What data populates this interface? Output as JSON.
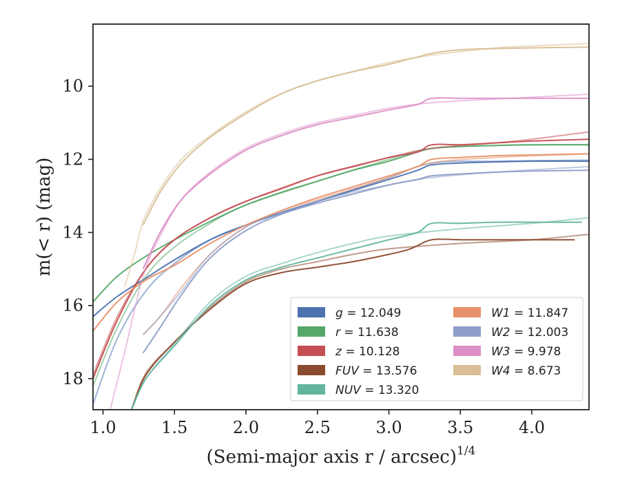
{
  "chart_data": {
    "type": "line",
    "title": "",
    "xlabel": "(Semi-major axis r / arcsec)",
    "xlabel_var": "r",
    "xlabel_exp": "1/4",
    "ylabel": "m(< r) (mag)",
    "xlim": [
      0.93,
      4.4
    ],
    "ylim": [
      18.85,
      8.3
    ],
    "y_inverted": true,
    "xticks": [
      "1.0",
      "1.5",
      "2.0",
      "2.5",
      "3.0",
      "3.5",
      "4.0"
    ],
    "xtick_values": [
      1.0,
      1.5,
      2.0,
      2.5,
      3.0,
      3.5,
      4.0
    ],
    "yticks": [
      "10",
      "12",
      "14",
      "16",
      "18"
    ],
    "ytick_values": [
      10,
      12,
      14,
      16,
      18
    ],
    "grid": false,
    "legend_position": "lower-right",
    "legend_columns": 2,
    "series": [
      {
        "name": "g",
        "legend_value": "= 12.049",
        "color": "#4c72b0",
        "x": [
          0.93,
          1.1,
          1.3,
          1.5,
          1.75,
          2.0,
          2.25,
          2.5,
          2.75,
          3.0,
          3.2,
          3.3,
          3.5,
          3.75,
          4.0,
          4.25,
          4.4
        ],
        "y": [
          16.3,
          15.75,
          15.25,
          14.75,
          14.2,
          13.8,
          13.45,
          13.15,
          12.85,
          12.55,
          12.3,
          12.15,
          12.1,
          12.07,
          12.05,
          12.05,
          12.05
        ],
        "x2": [
          0.93,
          1.1,
          1.3,
          1.5,
          1.75,
          2.0,
          2.5,
          3.0,
          3.3,
          3.75,
          4.4
        ],
        "y2": [
          18.7,
          16.9,
          15.6,
          14.85,
          14.2,
          13.8,
          13.15,
          12.5,
          12.1,
          12.05,
          12.02
        ]
      },
      {
        "name": "r",
        "legend_value": "= 11.638",
        "color": "#55a868",
        "x": [
          0.93,
          1.1,
          1.3,
          1.5,
          1.75,
          2.0,
          2.25,
          2.5,
          2.75,
          3.0,
          3.2,
          3.3,
          3.5,
          3.75,
          4.0,
          4.4
        ],
        "y": [
          15.9,
          15.2,
          14.65,
          14.2,
          13.7,
          13.25,
          12.9,
          12.6,
          12.3,
          12.05,
          11.8,
          11.7,
          11.65,
          11.62,
          11.6,
          11.6
        ],
        "x2": [
          0.93,
          1.1,
          1.3,
          1.5,
          1.75,
          2.0,
          2.5,
          3.0,
          3.3,
          3.75,
          4.4
        ],
        "y2": [
          18.2,
          16.6,
          15.2,
          14.4,
          13.75,
          13.25,
          12.6,
          12.0,
          11.7,
          11.62,
          11.6
        ]
      },
      {
        "name": "z",
        "legend_value": "= 10.128",
        "color": "#c44e52",
        "x": [
          0.93,
          1.1,
          1.3,
          1.5,
          1.75,
          2.0,
          2.25,
          2.5,
          2.75,
          3.0,
          3.2,
          3.3,
          3.5,
          3.75,
          4.0,
          4.4
        ],
        "y": [
          18.0,
          16.4,
          15.0,
          14.2,
          13.6,
          13.15,
          12.8,
          12.45,
          12.2,
          11.95,
          11.8,
          11.6,
          11.6,
          11.55,
          11.5,
          11.45
        ],
        "x2": [
          0.93,
          1.1,
          1.3,
          1.5,
          1.75,
          2.0,
          2.5,
          3.0,
          3.3,
          3.75,
          4.0,
          4.4
        ],
        "y2": [
          17.9,
          16.3,
          15.0,
          14.2,
          13.6,
          13.15,
          12.45,
          11.95,
          11.7,
          11.55,
          11.45,
          11.25
        ]
      },
      {
        "name": "FUV",
        "legend_value": "= 13.576",
        "color": "#8c4a2f",
        "x": [
          1.2,
          1.3,
          1.5,
          1.75,
          2.0,
          2.25,
          2.5,
          2.75,
          3.0,
          3.15,
          3.3,
          3.5,
          3.75,
          4.0,
          4.3
        ],
        "y": [
          18.85,
          17.9,
          17.0,
          16.1,
          15.4,
          15.1,
          14.95,
          14.8,
          14.6,
          14.45,
          14.2,
          14.2,
          14.2,
          14.2,
          14.2
        ],
        "x2": [
          1.2,
          1.3,
          1.5,
          1.75,
          2.0,
          2.25,
          2.5,
          2.75,
          3.0,
          3.5,
          4.0,
          4.4
        ],
        "y2": [
          18.85,
          17.85,
          17.0,
          16.05,
          15.35,
          15.0,
          14.8,
          14.6,
          14.45,
          14.3,
          14.2,
          14.05
        ]
      },
      {
        "name": "NUV",
        "legend_value": "= 13.320",
        "color": "#64b5a0",
        "x": [
          1.2,
          1.3,
          1.5,
          1.75,
          2.0,
          2.25,
          2.5,
          2.75,
          3.0,
          3.2,
          3.3,
          3.5,
          3.75,
          4.0,
          4.35
        ],
        "y": [
          18.85,
          18.0,
          17.1,
          16.0,
          15.3,
          14.95,
          14.7,
          14.45,
          14.2,
          14.0,
          13.75,
          13.75,
          13.72,
          13.72,
          13.72
        ],
        "x2": [
          1.2,
          1.3,
          1.5,
          1.75,
          2.0,
          2.25,
          2.5,
          2.75,
          3.0,
          3.5,
          4.0,
          4.4
        ],
        "y2": [
          18.85,
          18.0,
          17.05,
          15.9,
          15.2,
          14.85,
          14.55,
          14.3,
          14.1,
          13.9,
          13.75,
          13.6
        ]
      },
      {
        "name": "W1",
        "legend_value": "= 11.847",
        "color": "#e8926b",
        "x": [
          0.93,
          1.1,
          1.3,
          1.5,
          1.75,
          2.0,
          2.25,
          2.5,
          2.75,
          3.0,
          3.2,
          3.3,
          3.5,
          3.75,
          4.0,
          4.4
        ],
        "y": [
          16.7,
          15.9,
          15.3,
          14.9,
          14.3,
          13.8,
          13.4,
          13.05,
          12.75,
          12.45,
          12.2,
          12.0,
          11.95,
          11.9,
          11.88,
          11.85
        ],
        "x2": [
          1.28,
          1.4,
          1.55,
          1.75,
          2.0,
          2.25,
          2.5,
          2.75,
          3.0,
          3.3,
          3.75,
          4.4
        ],
        "y2": [
          16.8,
          16.3,
          15.5,
          14.6,
          13.85,
          13.4,
          13.1,
          12.8,
          12.5,
          12.1,
          11.95,
          11.85
        ]
      },
      {
        "name": "W2",
        "legend_value": "= 12.003",
        "color": "#8e9ec9",
        "x": [
          1.28,
          1.4,
          1.55,
          1.75,
          2.0,
          2.25,
          2.5,
          2.75,
          3.0,
          3.2,
          3.3,
          3.5,
          3.75,
          4.0,
          4.4
        ],
        "y": [
          17.3,
          16.6,
          15.7,
          14.7,
          13.95,
          13.5,
          13.2,
          12.95,
          12.7,
          12.55,
          12.45,
          12.4,
          12.35,
          12.32,
          12.3
        ],
        "x2": [
          1.28,
          1.4,
          1.55,
          1.75,
          2.0,
          2.25,
          2.5,
          2.75,
          3.0,
          3.3,
          3.75,
          4.4
        ],
        "y2": [
          16.8,
          16.3,
          15.6,
          14.6,
          13.85,
          13.45,
          13.15,
          12.9,
          12.7,
          12.5,
          12.35,
          12.2
        ]
      },
      {
        "name": "W3",
        "legend_value": "= 9.978",
        "color": "#dd8fc7",
        "x": [
          1.28,
          1.4,
          1.55,
          1.75,
          2.0,
          2.25,
          2.5,
          2.75,
          3.0,
          3.2,
          3.3,
          3.5,
          3.75,
          4.0,
          4.4
        ],
        "y": [
          15.0,
          14.0,
          13.1,
          12.4,
          11.75,
          11.35,
          11.05,
          10.85,
          10.65,
          10.5,
          10.33,
          10.33,
          10.33,
          10.33,
          10.33
        ],
        "x2": [
          1.05,
          1.15,
          1.28,
          1.4,
          1.55,
          1.75,
          2.0,
          2.25,
          2.5,
          2.75,
          3.0,
          3.3,
          3.75,
          4.0,
          4.4
        ],
        "y2": [
          18.85,
          17.3,
          15.2,
          14.1,
          13.1,
          12.35,
          11.7,
          11.3,
          11.0,
          10.8,
          10.6,
          10.45,
          10.35,
          10.3,
          10.22
        ]
      },
      {
        "name": "W4",
        "legend_value": "= 8.673",
        "color": "#d9bf95",
        "x": [
          1.28,
          1.4,
          1.55,
          1.75,
          2.0,
          2.25,
          2.5,
          2.75,
          3.0,
          3.2,
          3.3,
          3.5,
          3.75,
          4.0,
          4.4
        ],
        "y": [
          13.8,
          12.9,
          12.1,
          11.4,
          10.75,
          10.2,
          9.85,
          9.6,
          9.4,
          9.2,
          9.1,
          9.0,
          8.97,
          8.95,
          8.93
        ],
        "x2": [
          1.15,
          1.22,
          1.28,
          1.4,
          1.55,
          1.75,
          2.0,
          2.25,
          2.5,
          2.75,
          3.0,
          3.3,
          3.75,
          4.0,
          4.4
        ],
        "y2": [
          15.5,
          14.6,
          13.7,
          12.8,
          12.0,
          11.35,
          10.7,
          10.2,
          9.85,
          9.6,
          9.35,
          9.15,
          8.95,
          8.9,
          8.83
        ]
      }
    ]
  }
}
